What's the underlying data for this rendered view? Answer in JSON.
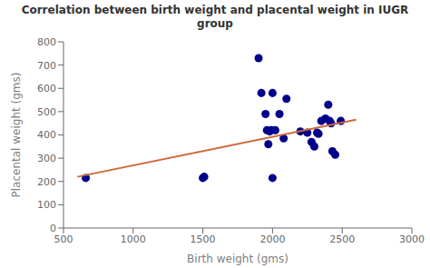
{
  "chart_data": {
    "type": "scatter",
    "title": "Correlation between birth weight and placental weight in IUGR\ngroup",
    "xlabel": "Birth weight (gms)",
    "ylabel": "Placental weight (gms)",
    "xlim": [
      500,
      3000
    ],
    "ylim": [
      0,
      800
    ],
    "xticks": [
      500,
      1000,
      1500,
      2000,
      2500,
      3000
    ],
    "yticks": [
      0,
      100,
      200,
      300,
      400,
      500,
      600,
      700,
      800
    ],
    "grid": false,
    "series": [
      {
        "type": "scatter",
        "color": "#00008B",
        "x": [
          660,
          1500,
          1510,
          1900,
          1920,
          1950,
          1960,
          1970,
          1980,
          1990,
          2000,
          2000,
          2020,
          2050,
          2080,
          2100,
          2200,
          2250,
          2280,
          2300,
          2320,
          2330,
          2350,
          2380,
          2400,
          2410,
          2420,
          2430,
          2450,
          2490
        ],
        "values": [
          215,
          215,
          220,
          730,
          580,
          490,
          420,
          360,
          415,
          420,
          580,
          215,
          420,
          490,
          385,
          555,
          415,
          410,
          370,
          350,
          410,
          405,
          460,
          470,
          530,
          460,
          450,
          330,
          315,
          460
        ]
      },
      {
        "type": "line",
        "color": "#CD6839",
        "x": [
          600,
          2600
        ],
        "values": [
          220,
          465
        ]
      }
    ]
  }
}
